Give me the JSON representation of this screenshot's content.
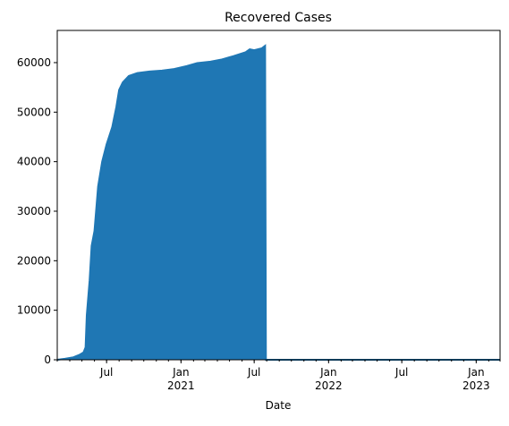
{
  "chart_data": {
    "type": "area",
    "title": "Recovered Cases",
    "xlabel": "Date",
    "ylabel": "",
    "color": "#1f77b4",
    "grid": false,
    "legend": "none",
    "x_range": [
      "2020-03-01",
      "2023-03-01"
    ],
    "ylim": [
      0,
      66500
    ],
    "y_ticks": [
      0,
      10000,
      20000,
      30000,
      40000,
      50000,
      60000
    ],
    "x_major_ticks": [
      {
        "date": "2020-07-01",
        "label": "Jul"
      },
      {
        "date": "2021-01-01",
        "label": "Jan\n2021"
      },
      {
        "date": "2021-07-01",
        "label": "Jul"
      },
      {
        "date": "2022-01-01",
        "label": "Jan\n2022"
      },
      {
        "date": "2022-07-01",
        "label": "Jul"
      },
      {
        "date": "2023-01-01",
        "label": "Jan\n2023"
      }
    ],
    "series": [
      {
        "points": [
          [
            "2020-03-01",
            0
          ],
          [
            "2020-03-20",
            200
          ],
          [
            "2020-04-10",
            500
          ],
          [
            "2020-04-25",
            1000
          ],
          [
            "2020-05-05",
            1500
          ],
          [
            "2020-05-10",
            2500
          ],
          [
            "2020-05-13",
            9000
          ],
          [
            "2020-05-20",
            16000
          ],
          [
            "2020-05-25",
            23000
          ],
          [
            "2020-06-01",
            26000
          ],
          [
            "2020-06-10",
            35000
          ],
          [
            "2020-06-20",
            40000
          ],
          [
            "2020-07-01",
            43500
          ],
          [
            "2020-07-15",
            47000
          ],
          [
            "2020-07-25",
            51000
          ],
          [
            "2020-08-01",
            54500
          ],
          [
            "2020-08-10",
            56000
          ],
          [
            "2020-08-25",
            57300
          ],
          [
            "2020-09-15",
            57900
          ],
          [
            "2020-10-15",
            58200
          ],
          [
            "2020-11-15",
            58400
          ],
          [
            "2020-12-15",
            58700
          ],
          [
            "2021-01-15",
            59300
          ],
          [
            "2021-02-10",
            59900
          ],
          [
            "2021-03-15",
            60200
          ],
          [
            "2021-04-10",
            60600
          ],
          [
            "2021-05-10",
            61300
          ],
          [
            "2021-06-10",
            62100
          ],
          [
            "2021-06-20",
            62700
          ],
          [
            "2021-07-01",
            62500
          ],
          [
            "2021-07-20",
            62900
          ],
          [
            "2021-07-28",
            63400
          ],
          [
            "2021-07-30",
            0
          ],
          [
            "2023-03-01",
            0
          ]
        ]
      }
    ]
  }
}
